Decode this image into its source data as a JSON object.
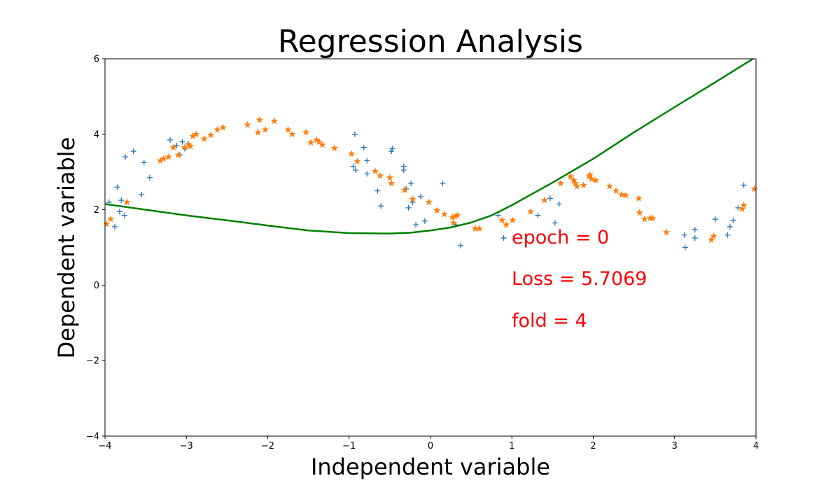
{
  "chart_data": {
    "type": "scatter",
    "title": "Regression Analysis",
    "xlabel": "Independent variable",
    "ylabel": "Dependent variable",
    "xlim": [
      -4,
      4
    ],
    "ylim": [
      -4,
      6
    ],
    "xticks": [
      "−4",
      "−3",
      "−2",
      "−1",
      "0",
      "1",
      "2",
      "3",
      "4"
    ],
    "yticks": [
      "−4",
      "−2",
      "0",
      "2",
      "4",
      "6"
    ],
    "grid": false,
    "annotations": [
      "epoch = 0",
      "Loss = 5.7069",
      "fold = 4"
    ],
    "series": [
      {
        "marker": "plus",
        "color": "#1f77b4",
        "points": [
          [
            -3.95,
            2.2
          ],
          [
            -3.88,
            1.55
          ],
          [
            -3.85,
            2.6
          ],
          [
            -3.82,
            1.95
          ],
          [
            -3.8,
            2.25
          ],
          [
            -3.76,
            1.85
          ],
          [
            -3.75,
            3.4
          ],
          [
            -3.65,
            3.55
          ],
          [
            -3.55,
            2.4
          ],
          [
            -3.52,
            3.25
          ],
          [
            -3.45,
            2.85
          ],
          [
            -3.2,
            3.85
          ],
          [
            -3.12,
            3.7
          ],
          [
            -3.08,
            3.45
          ],
          [
            -3.05,
            3.8
          ],
          [
            -3.02,
            3.62
          ],
          [
            -2.98,
            3.75
          ],
          [
            -0.93,
            4.0
          ],
          [
            -0.95,
            3.15
          ],
          [
            -0.92,
            3.05
          ],
          [
            -0.82,
            3.65
          ],
          [
            -0.78,
            3.3
          ],
          [
            -0.78,
            2.95
          ],
          [
            -0.65,
            2.5
          ],
          [
            -0.61,
            2.1
          ],
          [
            -0.48,
            3.55
          ],
          [
            -0.47,
            3.62
          ],
          [
            -0.33,
            3.15
          ],
          [
            -0.33,
            3.05
          ],
          [
            -0.3,
            2.55
          ],
          [
            -0.27,
            2.05
          ],
          [
            -0.24,
            2.7
          ],
          [
            -0.22,
            2.2
          ],
          [
            -0.18,
            1.6
          ],
          [
            -0.12,
            2.35
          ],
          [
            -0.07,
            1.7
          ],
          [
            0.15,
            2.7
          ],
          [
            0.31,
            1.6
          ],
          [
            0.37,
            1.05
          ],
          [
            0.83,
            1.85
          ],
          [
            0.9,
            1.25
          ],
          [
            1.32,
            1.85
          ],
          [
            1.47,
            2.3
          ],
          [
            1.53,
            1.65
          ],
          [
            1.58,
            2.15
          ],
          [
            3.12,
            1.33
          ],
          [
            3.13,
            1.0
          ],
          [
            3.25,
            1.47
          ],
          [
            3.25,
            1.25
          ],
          [
            3.5,
            1.75
          ],
          [
            3.65,
            1.33
          ],
          [
            3.68,
            1.55
          ],
          [
            3.72,
            1.72
          ],
          [
            3.78,
            2.05
          ],
          [
            3.85,
            2.65
          ]
        ]
      },
      {
        "marker": "star",
        "color": "#ff7f0e",
        "points": [
          [
            -3.98,
            1.62
          ],
          [
            -3.93,
            1.75
          ],
          [
            -3.73,
            2.2
          ],
          [
            -3.32,
            3.3
          ],
          [
            -3.28,
            3.35
          ],
          [
            -3.22,
            3.4
          ],
          [
            -3.16,
            3.65
          ],
          [
            -3.1,
            3.45
          ],
          [
            -3.02,
            3.65
          ],
          [
            -2.97,
            3.72
          ],
          [
            -2.95,
            3.68
          ],
          [
            -2.92,
            3.95
          ],
          [
            -2.88,
            4.0
          ],
          [
            -2.78,
            3.88
          ],
          [
            -2.7,
            3.98
          ],
          [
            -2.62,
            4.12
          ],
          [
            -2.55,
            4.18
          ],
          [
            -2.25,
            4.25
          ],
          [
            -2.12,
            4.05
          ],
          [
            -2.1,
            4.38
          ],
          [
            -2.03,
            4.12
          ],
          [
            -1.92,
            4.35
          ],
          [
            -1.75,
            4.12
          ],
          [
            -1.7,
            4.0
          ],
          [
            -1.53,
            4.05
          ],
          [
            -1.47,
            3.78
          ],
          [
            -1.4,
            3.85
          ],
          [
            -1.37,
            3.8
          ],
          [
            -1.33,
            3.72
          ],
          [
            -1.18,
            3.63
          ],
          [
            -0.97,
            3.48
          ],
          [
            -0.9,
            3.28
          ],
          [
            -0.68,
            3.02
          ],
          [
            -0.62,
            2.9
          ],
          [
            -0.5,
            2.85
          ],
          [
            -0.48,
            2.7
          ],
          [
            -0.32,
            2.52
          ],
          [
            -0.22,
            2.28
          ],
          [
            -0.02,
            2.2
          ],
          [
            0.08,
            1.98
          ],
          [
            0.17,
            1.88
          ],
          [
            0.27,
            1.8
          ],
          [
            0.28,
            1.65
          ],
          [
            0.3,
            1.82
          ],
          [
            0.33,
            1.85
          ],
          [
            0.55,
            1.5
          ],
          [
            0.6,
            1.5
          ],
          [
            0.88,
            1.72
          ],
          [
            0.93,
            1.6
          ],
          [
            1.01,
            1.72
          ],
          [
            1.23,
            1.95
          ],
          [
            1.4,
            2.25
          ],
          [
            1.6,
            2.7
          ],
          [
            1.72,
            2.88
          ],
          [
            1.76,
            2.78
          ],
          [
            1.78,
            2.7
          ],
          [
            1.8,
            2.62
          ],
          [
            1.88,
            2.65
          ],
          [
            1.95,
            2.88
          ],
          [
            1.96,
            2.92
          ],
          [
            1.98,
            2.82
          ],
          [
            2.03,
            2.78
          ],
          [
            2.2,
            2.62
          ],
          [
            2.28,
            2.5
          ],
          [
            2.35,
            2.4
          ],
          [
            2.4,
            2.38
          ],
          [
            2.56,
            2.3
          ],
          [
            2.57,
            1.92
          ],
          [
            2.63,
            1.75
          ],
          [
            2.7,
            1.78
          ],
          [
            2.73,
            1.77
          ],
          [
            2.9,
            1.4
          ],
          [
            3.45,
            1.2
          ],
          [
            3.48,
            1.3
          ],
          [
            3.83,
            2.02
          ],
          [
            3.85,
            2.12
          ],
          [
            3.98,
            2.55
          ]
        ]
      },
      {
        "marker": "line",
        "color": "#008000",
        "points": [
          [
            -4.0,
            2.15
          ],
          [
            -3.5,
            2.0
          ],
          [
            -3.0,
            1.85
          ],
          [
            -2.5,
            1.72
          ],
          [
            -2.0,
            1.58
          ],
          [
            -1.5,
            1.45
          ],
          [
            -1.0,
            1.38
          ],
          [
            -0.5,
            1.37
          ],
          [
            -0.25,
            1.39
          ],
          [
            0.0,
            1.45
          ],
          [
            0.25,
            1.53
          ],
          [
            0.5,
            1.66
          ],
          [
            0.75,
            1.85
          ],
          [
            1.0,
            2.12
          ],
          [
            1.5,
            2.72
          ],
          [
            2.0,
            3.35
          ],
          [
            2.5,
            4.05
          ],
          [
            3.0,
            4.72
          ],
          [
            3.5,
            5.38
          ],
          [
            4.0,
            6.05
          ]
        ]
      }
    ]
  }
}
